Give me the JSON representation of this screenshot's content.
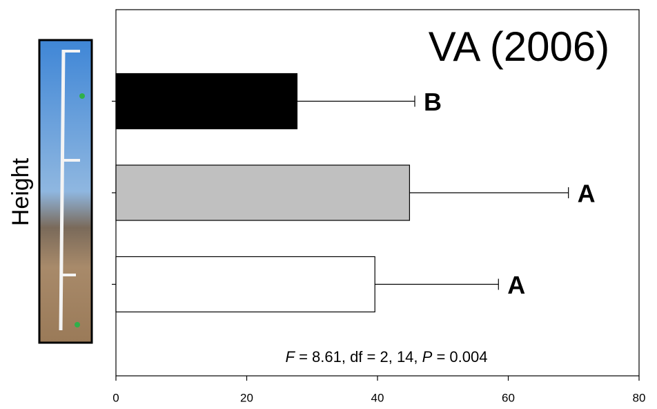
{
  "chart_data": {
    "type": "hbar_error",
    "title": "VA (2006)",
    "y_label": "Height",
    "annotation": [
      "F",
      " = 8.61, df = 2, 14, ",
      "P",
      " = 0.004"
    ],
    "categories": [
      null,
      null,
      null
    ],
    "values": [
      27.7,
      44.9,
      39.6
    ],
    "errors": [
      18.0,
      24.3,
      18.9
    ],
    "colors": [
      "#000000",
      "#c0c0c0",
      "#ffffff"
    ],
    "significance_letters": [
      "B",
      "A",
      "A"
    ],
    "xlim": [
      0,
      80
    ],
    "xticks": [
      0,
      20,
      40,
      60,
      80
    ]
  }
}
